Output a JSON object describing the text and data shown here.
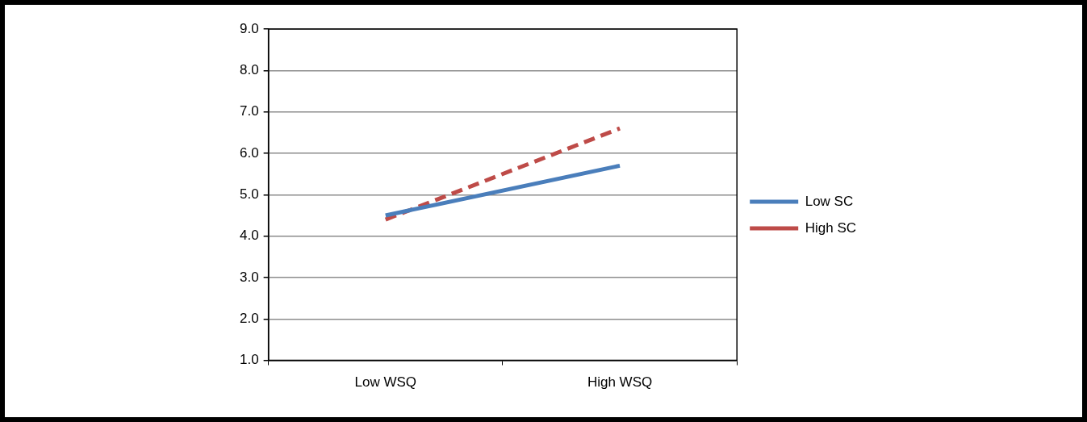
{
  "chart_data": {
    "type": "line",
    "categories": [
      "Low WSQ",
      "High WSQ"
    ],
    "series": [
      {
        "name": "Low SC",
        "color": "#4a7ebb",
        "values": [
          4.5,
          5.7
        ],
        "line_style": "solid"
      },
      {
        "name": "High SC",
        "color": "#be4b48",
        "values": [
          4.4,
          6.6
        ],
        "line_style": "dashed"
      }
    ],
    "ylim": [
      1,
      9
    ],
    "yticks": [
      {
        "value": 1,
        "label": "1.0"
      },
      {
        "value": 2,
        "label": "2.0"
      },
      {
        "value": 3,
        "label": "3.0"
      },
      {
        "value": 4,
        "label": "4.0"
      },
      {
        "value": 5,
        "label": "5.0"
      },
      {
        "value": 6,
        "label": "6.0"
      },
      {
        "value": 7,
        "label": "7.0"
      },
      {
        "value": 8,
        "label": "8.0"
      },
      {
        "value": 9,
        "label": "9.0"
      }
    ],
    "grid": "y",
    "legend": "right",
    "marker": "none"
  }
}
